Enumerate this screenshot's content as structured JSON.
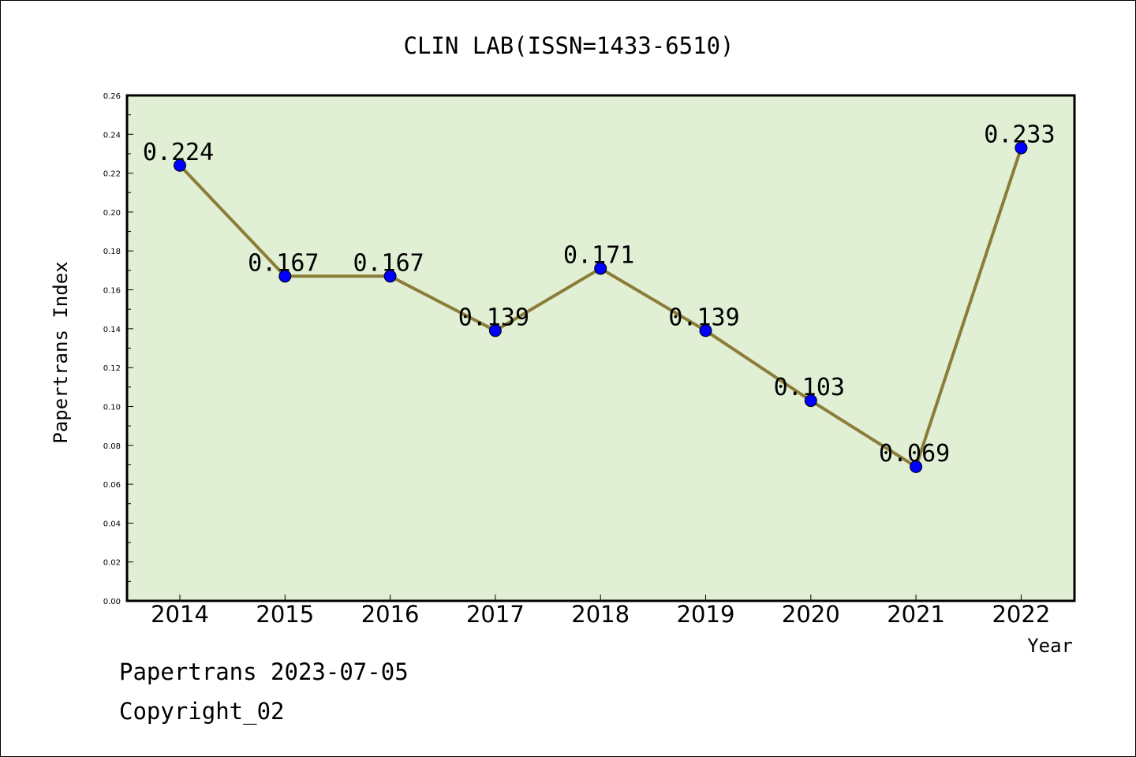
{
  "chart_data": {
    "type": "line",
    "title": "CLIN LAB(ISSN=1433-6510)",
    "xlabel": "Year",
    "ylabel": "Papertrans Index",
    "categories": [
      "2014",
      "2015",
      "2016",
      "2017",
      "2018",
      "2019",
      "2020",
      "2021",
      "2022"
    ],
    "series": [
      {
        "values": [
          0.224,
          0.167,
          0.167,
          0.139,
          0.171,
          0.139,
          0.103,
          0.069,
          0.233
        ],
        "data_labels": [
          "0.224",
          "0.167",
          "0.167",
          "0.139",
          "0.171",
          "0.139",
          "0.103",
          "0.069",
          "0.233"
        ]
      }
    ],
    "ylim": [
      0,
      0.26
    ],
    "yticks": [
      "0.00",
      "0.02",
      "0.04",
      "0.06",
      "0.08",
      "0.10",
      "0.12",
      "0.14",
      "0.16",
      "0.18",
      "0.20",
      "0.22",
      "0.24",
      "0.26"
    ],
    "grid": false,
    "legend": "none"
  },
  "footer": {
    "line1": "Papertrans 2023-07-05",
    "line2": "Copyright_02"
  },
  "colors": {
    "plot_background": "#e1efd5",
    "line": "#8b7d38",
    "marker": "#0000ff",
    "axis": "#000000"
  }
}
